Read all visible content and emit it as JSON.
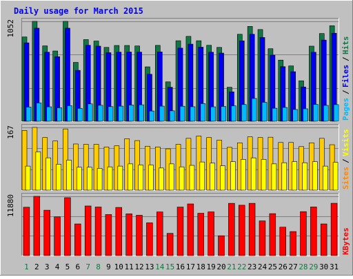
{
  "chart_data": {
    "type": "bar",
    "title": "Daily usage for March 2015",
    "days": [
      "1",
      "2",
      "3",
      "4",
      "5",
      "6",
      "7",
      "8",
      "9",
      "10",
      "11",
      "12",
      "13",
      "14",
      "15",
      "16",
      "17",
      "18",
      "19",
      "20",
      "21",
      "22",
      "23",
      "24",
      "25",
      "26",
      "27",
      "28",
      "29",
      "30",
      "31"
    ],
    "weekend_days": [
      "1",
      "7",
      "8",
      "14",
      "15",
      "21",
      "22",
      "28",
      "29"
    ],
    "panels": [
      {
        "id": "hits-files-pages",
        "axis_max_label": "1052",
        "ylim": [
          0,
          1052
        ],
        "grid": true,
        "side_legend": [
          {
            "label": "Pages",
            "color": "#00bbff"
          },
          {
            "label": "Files",
            "color": "#0000ee"
          },
          {
            "label": "Hits",
            "color": "#117744"
          }
        ],
        "series": [
          {
            "name": "Hits",
            "color": "#117744",
            "values": [
              888,
              1052,
              794,
              740,
              1052,
              620,
              860,
              845,
              778,
              798,
              798,
              793,
              573,
              799,
              415,
              848,
              894,
              848,
              800,
              778,
              358,
              916,
              999,
              966,
              764,
              644,
              583,
              426,
              791,
              924,
              1006
            ]
          },
          {
            "name": "Files",
            "color": "#0000ee",
            "values": [
              826,
              980,
              727,
              680,
              980,
              536,
              800,
              791,
              722,
              728,
              729,
              728,
              495,
              730,
              358,
              770,
              812,
              780,
              727,
              718,
              310,
              847,
              916,
              882,
              696,
              575,
              522,
              361,
              727,
              855,
              927
            ]
          },
          {
            "name": "Pages",
            "color": "#00bbff",
            "values": [
              150,
              193,
              152,
              142,
              164,
              136,
              183,
              168,
              154,
              159,
              171,
              173,
              108,
              159,
              110,
              158,
              153,
              186,
              152,
              156,
              162,
              176,
              240,
              200,
              137,
              145,
              124,
              131,
              177,
              167,
              175
            ]
          }
        ]
      },
      {
        "id": "visits-sites",
        "axis_max_label": "167",
        "ylim": [
          0,
          167
        ],
        "grid": true,
        "side_legend": [
          {
            "label": "Sites",
            "color": "#ff8800"
          },
          {
            "label": "Visits",
            "color": "#ffff00"
          }
        ],
        "series": [
          {
            "name": "Visits",
            "color": "#ffcc00",
            "values": [
              159,
              167,
              140,
              131,
              163,
              123,
              122,
              122,
              115,
              118,
              137,
              132,
              117,
              115,
              110,
              122,
              138,
              144,
              140,
              133,
              114,
              126,
              142,
              140,
              141,
              127,
              127,
              116,
              126,
              138,
              121
            ]
          },
          {
            "name": "Sites",
            "color": "#ffff00",
            "values": [
              64,
              102,
              86,
              69,
              80,
              61,
              61,
              58,
              62,
              64,
              70,
              67,
              67,
              59,
              70,
              62,
              66,
              75,
              72,
              65,
              76,
              82,
              86,
              82,
              70,
              73,
              76,
              73,
              76,
              64,
              74
            ]
          }
        ]
      },
      {
        "id": "kbytes",
        "axis_max_label": "11880",
        "ylim": [
          0,
          11880
        ],
        "grid": true,
        "side_legend": [
          {
            "label": "KBytes",
            "color": "#ff0000"
          }
        ],
        "series": [
          {
            "name": "KBytes",
            "color": "#ff0000",
            "values": [
              9700,
              11880,
              9100,
              7770,
              11610,
              6350,
              9950,
              9740,
              8230,
              9660,
              8370,
              8090,
              6570,
              8760,
              4460,
              9730,
              10360,
              8490,
              8770,
              3980,
              10480,
              10100,
              10480,
              6960,
              8410,
              5700,
              4820,
              8810,
              9750,
              6350,
              10490
            ]
          }
        ]
      }
    ]
  }
}
